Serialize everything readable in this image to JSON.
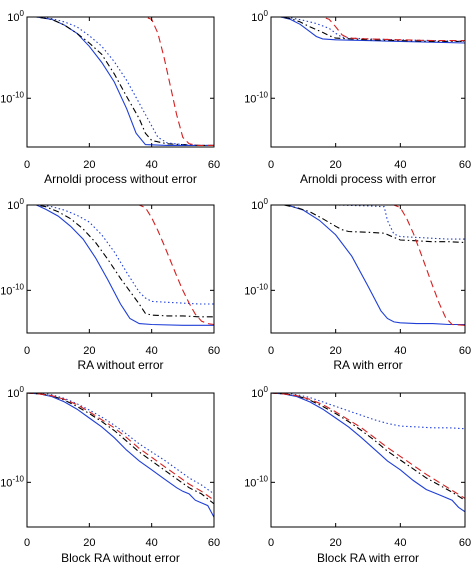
{
  "chart_data": [
    {
      "type": "line",
      "title": "Arnoldi process without error",
      "xlim": [
        0,
        60
      ],
      "x_ticks": [
        "0",
        "20",
        "40",
        "60"
      ],
      "yscale": "log",
      "ylim_exp": [
        -16,
        0
      ],
      "y_ticks": [
        {
          "base": "10",
          "exp": "0",
          "value_exp": 0
        },
        {
          "base": "10",
          "exp": "-10",
          "value_exp": -10
        }
      ],
      "grid": false,
      "series": [
        {
          "style": "solid",
          "color": "#1f3fd6",
          "x": [
            0,
            3,
            8,
            12,
            16,
            20,
            24,
            28,
            32,
            35,
            38,
            45,
            50,
            55,
            60
          ],
          "y_exp": [
            0,
            0,
            -0.3,
            -1,
            -2,
            -3.6,
            -5.6,
            -8,
            -11.3,
            -14.3,
            -15.7,
            -15.8,
            -15.8,
            -15.8,
            -15.8
          ]
        },
        {
          "style": "dashdot",
          "color": "#000000",
          "x": [
            0,
            3,
            8,
            12,
            16,
            20,
            24,
            28,
            32,
            36,
            38,
            40,
            45,
            50,
            55,
            60
          ],
          "y_exp": [
            0,
            0,
            -0.3,
            -1,
            -2,
            -3.2,
            -4.6,
            -7,
            -9.8,
            -12.5,
            -14.3,
            -15.2,
            -15.6,
            -15.7,
            -15.8,
            -15.8
          ]
        },
        {
          "style": "dotted",
          "color": "#1f3fd6",
          "x": [
            0,
            3,
            8,
            12,
            16,
            20,
            24,
            28,
            32,
            36,
            40,
            42,
            45,
            50,
            55,
            60
          ],
          "y_exp": [
            0,
            0,
            -0.2,
            -0.6,
            -1.2,
            -2.3,
            -3.6,
            -5.5,
            -7.8,
            -10.6,
            -13.4,
            -14.8,
            -15.5,
            -15.7,
            -15.8,
            -15.8
          ]
        },
        {
          "style": "dashed",
          "color": "#d62020",
          "x": [
            0,
            10,
            20,
            30,
            38,
            40,
            42,
            44,
            46,
            48,
            50,
            52,
            55,
            60
          ],
          "y_exp": [
            0,
            0,
            0,
            0,
            0,
            -0.3,
            -2,
            -5,
            -8.5,
            -12,
            -14.8,
            -15.6,
            -15.8,
            -15.8
          ]
        }
      ]
    },
    {
      "type": "line",
      "title": "Arnoldi process with error",
      "xlim": [
        0,
        60
      ],
      "x_ticks": [
        "0",
        "20",
        "40",
        "60"
      ],
      "yscale": "log",
      "ylim_exp": [
        -16,
        0
      ],
      "y_ticks": [
        {
          "base": "10",
          "exp": "0",
          "value_exp": 0
        },
        {
          "base": "10",
          "exp": "-10",
          "value_exp": -10
        }
      ],
      "grid": false,
      "series": [
        {
          "style": "solid",
          "color": "#1f3fd6",
          "x": [
            0,
            3,
            6,
            9,
            12,
            14,
            16,
            20,
            30,
            40,
            50,
            60
          ],
          "y_exp": [
            0,
            0,
            -0.3,
            -0.9,
            -1.8,
            -2.4,
            -2.7,
            -2.8,
            -2.9,
            -3.0,
            -3.1,
            -3.2
          ]
        },
        {
          "style": "dashdot",
          "color": "#000000",
          "x": [
            0,
            3,
            6,
            9,
            12,
            16,
            18,
            20,
            25,
            30,
            40,
            50,
            60
          ],
          "y_exp": [
            0,
            0,
            -0.2,
            -0.6,
            -1.2,
            -1.9,
            -2.3,
            -2.6,
            -2.7,
            -2.8,
            -2.9,
            -3.0,
            -3.0
          ]
        },
        {
          "style": "dotted",
          "color": "#1f3fd6",
          "x": [
            0,
            3,
            6,
            10,
            14,
            18,
            20,
            22,
            25,
            30,
            40,
            50,
            60
          ],
          "y_exp": [
            0,
            0,
            -0.1,
            -0.4,
            -0.8,
            -1.4,
            -2.0,
            -2.5,
            -2.6,
            -2.7,
            -2.8,
            -2.9,
            -3.0
          ]
        },
        {
          "style": "dashed",
          "color": "#d62020",
          "x": [
            0,
            10,
            16,
            18,
            20,
            22,
            24,
            30,
            40,
            50,
            60
          ],
          "y_exp": [
            0,
            0,
            0,
            -0.3,
            -1.2,
            -2.2,
            -2.6,
            -2.7,
            -2.8,
            -2.9,
            -2.9
          ]
        }
      ]
    },
    {
      "type": "line",
      "title": "RA without error",
      "xlim": [
        0,
        60
      ],
      "x_ticks": [
        "0",
        "20",
        "40",
        "60"
      ],
      "yscale": "log",
      "ylim_exp": [
        -15,
        0
      ],
      "y_ticks": [
        {
          "base": "10",
          "exp": "0",
          "value_exp": 0
        },
        {
          "base": "10",
          "exp": "-10",
          "value_exp": -10
        }
      ],
      "grid": false,
      "series": [
        {
          "style": "solid",
          "color": "#1f3fd6",
          "x": [
            0,
            3,
            6,
            10,
            14,
            18,
            22,
            26,
            30,
            33,
            36,
            40,
            50,
            60
          ],
          "y_exp": [
            0,
            0,
            -0.5,
            -1.3,
            -2.5,
            -4,
            -6.2,
            -8.8,
            -11.6,
            -13.3,
            -13.9,
            -14.0,
            -14.1,
            -14.1
          ]
        },
        {
          "style": "dashdot",
          "color": "#000000",
          "x": [
            0,
            3,
            6,
            10,
            14,
            18,
            22,
            26,
            30,
            34,
            36,
            38,
            40,
            45,
            50,
            55,
            60
          ],
          "y_exp": [
            0,
            0,
            -0.2,
            -0.8,
            -1.6,
            -2.8,
            -4.4,
            -6.4,
            -8.6,
            -10.6,
            -11.6,
            -12.7,
            -12.9,
            -13.0,
            -13.0,
            -13.1,
            -13.1
          ]
        },
        {
          "style": "dotted",
          "color": "#1f3fd6",
          "x": [
            0,
            4,
            8,
            12,
            16,
            20,
            24,
            28,
            32,
            36,
            38,
            40,
            45,
            50,
            55,
            60
          ],
          "y_exp": [
            0,
            0,
            -0.2,
            -0.6,
            -1.2,
            -2.0,
            -3.5,
            -5.5,
            -7.9,
            -10.2,
            -10.9,
            -11.3,
            -11.4,
            -11.5,
            -11.6,
            -11.6
          ]
        },
        {
          "style": "dashed",
          "color": "#d62020",
          "x": [
            0,
            10,
            20,
            30,
            36,
            38,
            40,
            42,
            44,
            46,
            48,
            50,
            52,
            54,
            56,
            58,
            60
          ],
          "y_exp": [
            0,
            0,
            0,
            0,
            0,
            -0.3,
            -1.5,
            -3,
            -4.7,
            -6.5,
            -8.3,
            -10,
            -11.5,
            -12.8,
            -13.6,
            -13.9,
            -14.0
          ]
        }
      ]
    },
    {
      "type": "line",
      "title": "RA with error",
      "xlim": [
        0,
        60
      ],
      "x_ticks": [
        "0",
        "20",
        "40",
        "60"
      ],
      "yscale": "log",
      "ylim_exp": [
        -15,
        0
      ],
      "y_ticks": [
        {
          "base": "10",
          "exp": "0",
          "value_exp": 0
        },
        {
          "base": "10",
          "exp": "-10",
          "value_exp": -10
        }
      ],
      "grid": false,
      "series": [
        {
          "style": "solid",
          "color": "#1f3fd6",
          "x": [
            0,
            5,
            10,
            15,
            20,
            25,
            30,
            34,
            36,
            38,
            40,
            45,
            50,
            55,
            60
          ],
          "y_exp": [
            0,
            0,
            -0.6,
            -1.8,
            -3.5,
            -6,
            -9.5,
            -12.4,
            -13.3,
            -13.7,
            -13.8,
            -13.9,
            -13.9,
            -14.0,
            -14.0
          ]
        },
        {
          "style": "dashdot",
          "color": "#000000",
          "x": [
            0,
            4,
            8,
            12,
            16,
            20,
            22,
            24,
            30,
            35,
            38,
            40,
            45,
            50,
            55,
            60
          ],
          "y_exp": [
            0,
            0,
            -0.3,
            -0.8,
            -1.6,
            -2.5,
            -2.9,
            -3.1,
            -3.2,
            -3.3,
            -3.8,
            -4.1,
            -4.2,
            -4.3,
            -4.3,
            -4.4
          ]
        },
        {
          "style": "dotted",
          "color": "#1f3fd6",
          "x": [
            0,
            10,
            20,
            30,
            35,
            36,
            38,
            40,
            45,
            50,
            55,
            60
          ],
          "y_exp": [
            0,
            0,
            0,
            -0.1,
            -0.2,
            -1.8,
            -3.4,
            -3.7,
            -3.8,
            -3.9,
            -4.0,
            -4.0
          ]
        },
        {
          "style": "dashed",
          "color": "#d62020",
          "x": [
            0,
            10,
            20,
            30,
            38,
            40,
            42,
            44,
            46,
            48,
            50,
            52,
            54,
            56,
            60
          ],
          "y_exp": [
            0,
            0,
            0,
            0,
            0,
            -0.3,
            -1.6,
            -3.3,
            -5.3,
            -7.4,
            -9.5,
            -11.5,
            -13.2,
            -14.0,
            -14.1
          ]
        }
      ]
    },
    {
      "type": "line",
      "title": "Block RA without error",
      "xlim": [
        0,
        60
      ],
      "x_ticks": [
        "0",
        "20",
        "40",
        "60"
      ],
      "yscale": "log",
      "ylim_exp": [
        -15,
        0
      ],
      "y_ticks": [
        {
          "base": "10",
          "exp": "0",
          "value_exp": 0
        },
        {
          "base": "10",
          "exp": "-10",
          "value_exp": -10
        }
      ],
      "grid": false,
      "series": [
        {
          "style": "solid",
          "color": "#1f3fd6",
          "x": [
            0,
            4,
            8,
            12,
            16,
            20,
            24,
            28,
            32,
            36,
            40,
            44,
            48,
            50,
            52,
            54,
            56,
            58,
            60
          ],
          "y_exp": [
            0,
            -0.1,
            -0.4,
            -1,
            -1.8,
            -2.8,
            -3.8,
            -5,
            -6.4,
            -7.6,
            -8.6,
            -9.6,
            -10.6,
            -11,
            -11.3,
            -12,
            -12.3,
            -12.6,
            -13.9
          ]
        },
        {
          "style": "dashdot",
          "color": "#000000",
          "x": [
            0,
            4,
            8,
            12,
            16,
            20,
            24,
            28,
            32,
            36,
            40,
            44,
            48,
            52,
            56,
            60
          ],
          "y_exp": [
            0,
            -0.1,
            -0.3,
            -0.8,
            -1.5,
            -2.3,
            -3.2,
            -4.2,
            -5.4,
            -6.6,
            -7.6,
            -8.6,
            -9.6,
            -10.6,
            -11.3,
            -12.4
          ]
        },
        {
          "style": "dotted",
          "color": "#1f3fd6",
          "x": [
            0,
            4,
            8,
            12,
            16,
            20,
            24,
            28,
            32,
            36,
            40,
            44,
            48,
            52,
            56,
            60
          ],
          "y_exp": [
            0,
            0,
            -0.2,
            -0.6,
            -1.2,
            -1.9,
            -2.7,
            -3.6,
            -4.6,
            -5.7,
            -6.6,
            -7.5,
            -8.5,
            -9.5,
            -10.3,
            -11.3
          ]
        },
        {
          "style": "dashed",
          "color": "#d62020",
          "x": [
            0,
            4,
            8,
            12,
            16,
            20,
            24,
            28,
            32,
            36,
            40,
            44,
            48,
            52,
            56,
            60
          ],
          "y_exp": [
            0,
            -0.1,
            -0.3,
            -0.7,
            -1.3,
            -2.1,
            -3.0,
            -3.9,
            -5.0,
            -6.2,
            -7.2,
            -8.2,
            -9.2,
            -10.2,
            -11.0,
            -12.0
          ]
        }
      ]
    },
    {
      "type": "line",
      "title": "Block RA with error",
      "xlim": [
        0,
        60
      ],
      "x_ticks": [
        "0",
        "20",
        "40",
        "60"
      ],
      "yscale": "log",
      "ylim_exp": [
        -15,
        0
      ],
      "y_ticks": [
        {
          "base": "10",
          "exp": "0",
          "value_exp": 0
        },
        {
          "base": "10",
          "exp": "-10",
          "value_exp": -10
        }
      ],
      "grid": false,
      "series": [
        {
          "style": "solid",
          "color": "#1f3fd6",
          "x": [
            0,
            4,
            8,
            12,
            16,
            20,
            24,
            28,
            32,
            36,
            40,
            44,
            48,
            52,
            56,
            58,
            60
          ],
          "y_exp": [
            0,
            -0.1,
            -0.4,
            -1,
            -1.8,
            -2.8,
            -3.8,
            -5,
            -6.3,
            -7.6,
            -8.6,
            -9.8,
            -10.8,
            -11.4,
            -12,
            -12.8,
            -13.3
          ]
        },
        {
          "style": "dashdot",
          "color": "#000000",
          "x": [
            0,
            4,
            8,
            12,
            16,
            20,
            24,
            28,
            32,
            36,
            40,
            44,
            48,
            52,
            56,
            60
          ],
          "y_exp": [
            0,
            -0.1,
            -0.3,
            -0.8,
            -1.5,
            -2.3,
            -3.2,
            -4.2,
            -5.3,
            -6.5,
            -7.5,
            -8.5,
            -9.5,
            -10.3,
            -11.1,
            -12.0
          ]
        },
        {
          "style": "dotted",
          "color": "#1f3fd6",
          "x": [
            0,
            4,
            8,
            12,
            16,
            20,
            24,
            28,
            32,
            36,
            40,
            45,
            50,
            55,
            60
          ],
          "y_exp": [
            0,
            0,
            -0.2,
            -0.5,
            -1.0,
            -1.5,
            -2.0,
            -2.5,
            -3.0,
            -3.4,
            -3.7,
            -3.8,
            -3.9,
            -3.9,
            -4.0
          ]
        },
        {
          "style": "dashed",
          "color": "#d62020",
          "x": [
            0,
            4,
            8,
            12,
            16,
            20,
            24,
            28,
            32,
            36,
            40,
            44,
            48,
            52,
            56,
            60
          ],
          "y_exp": [
            0,
            -0.1,
            -0.3,
            -0.7,
            -1.3,
            -2.1,
            -3.0,
            -3.9,
            -5.0,
            -6.1,
            -7.1,
            -8.1,
            -9.1,
            -10.0,
            -10.9,
            -11.8
          ]
        }
      ]
    }
  ]
}
